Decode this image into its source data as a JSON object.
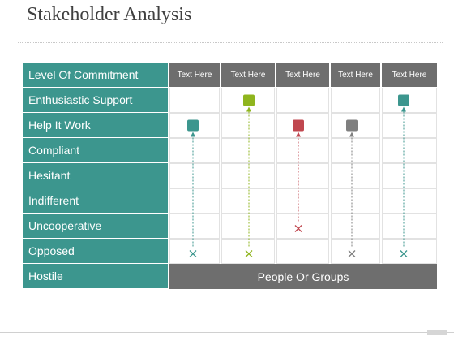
{
  "title": "Stakeholder Analysis",
  "levels": [
    "Level Of Commitment",
    "Enthusiastic Support",
    "Help It Work",
    "Compliant",
    "Hesitant",
    "Indifferent",
    "Uncooperative",
    "Opposed",
    "Hostile"
  ],
  "columns": [
    "Text Here",
    "Text Here",
    "Text Here",
    "Text Here",
    "Text Here"
  ],
  "footer": "People Or Groups",
  "stakeholders": [
    {
      "current": "Opposed",
      "target": "Help It Work",
      "color": "#3c968e"
    },
    {
      "current": "Opposed",
      "target": "Enthusiastic Support",
      "color": "#8fb51e"
    },
    {
      "current": "Uncooperative",
      "target": "Help It Work",
      "color": "#c0474f"
    },
    {
      "current": "Opposed",
      "target": "Help It Work",
      "color": "#7f7f7f"
    },
    {
      "current": "Opposed",
      "target": "Enthusiastic Support",
      "color": "#3c968e"
    }
  ]
}
